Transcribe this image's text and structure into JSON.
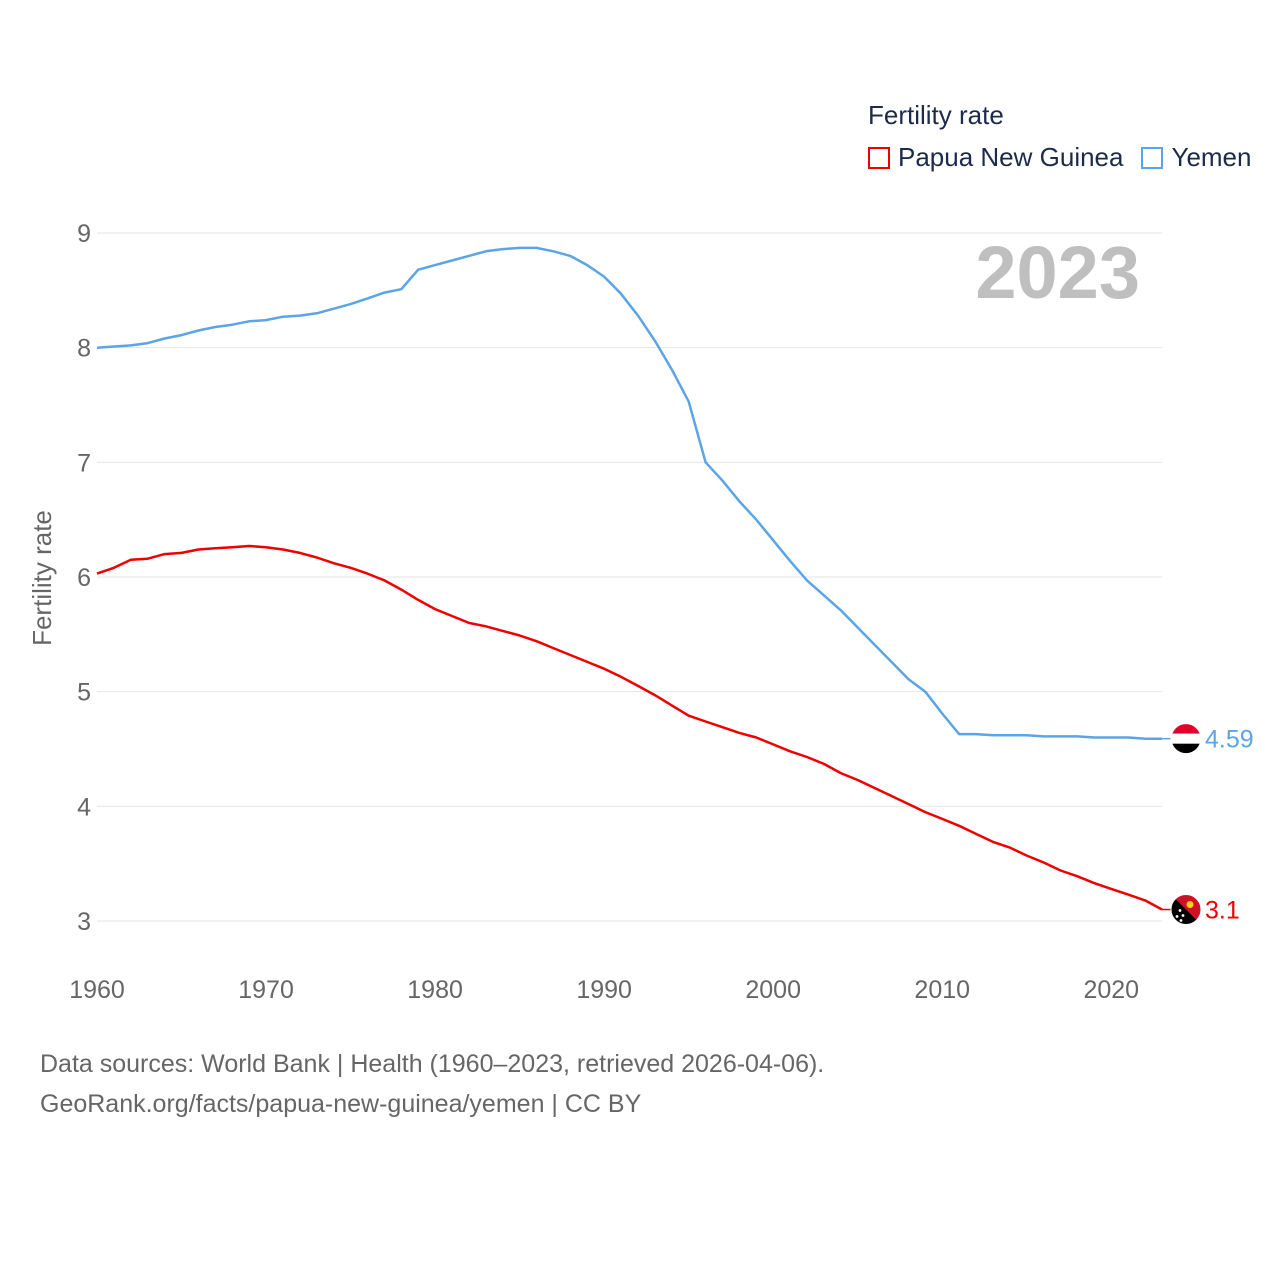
{
  "legend": {
    "title": "Fertility rate",
    "items": [
      {
        "name": "Papua New Guinea",
        "color": "#ee0000"
      },
      {
        "name": "Yemen",
        "color": "#5ba4e6"
      }
    ]
  },
  "footer": {
    "line1": "Data sources: World Bank | Health (1960–2023, retrieved 2026-04-06).",
    "line2": "GeoRank.org/facts/papua-new-guinea/yemen | CC BY"
  },
  "chart_data": {
    "type": "line",
    "year_label": "2023",
    "ylabel": "Fertility rate",
    "xlabel": "",
    "xlim": [
      1960,
      2023
    ],
    "ylim": [
      3,
      9
    ],
    "x_ticks": [
      1960,
      1970,
      1980,
      1990,
      2000,
      2010,
      2020
    ],
    "y_ticks": [
      3,
      4,
      5,
      6,
      7,
      8,
      9
    ],
    "x": [
      1960,
      1961,
      1962,
      1963,
      1964,
      1965,
      1966,
      1967,
      1968,
      1969,
      1970,
      1971,
      1972,
      1973,
      1974,
      1975,
      1976,
      1977,
      1978,
      1979,
      1980,
      1981,
      1982,
      1983,
      1984,
      1985,
      1986,
      1987,
      1988,
      1989,
      1990,
      1991,
      1992,
      1993,
      1994,
      1995,
      1996,
      1997,
      1998,
      1999,
      2000,
      2001,
      2002,
      2003,
      2004,
      2005,
      2006,
      2007,
      2008,
      2009,
      2010,
      2011,
      2012,
      2013,
      2014,
      2015,
      2016,
      2017,
      2018,
      2019,
      2020,
      2021,
      2022,
      2023
    ],
    "series": [
      {
        "name": "Papua New Guinea",
        "color": "#ee0000",
        "end_label": "3.1",
        "flag": "papua-new-guinea-flag",
        "values": [
          6.03,
          6.08,
          6.15,
          6.16,
          6.2,
          6.21,
          6.24,
          6.25,
          6.26,
          6.27,
          6.26,
          6.24,
          6.21,
          6.17,
          6.12,
          6.08,
          6.03,
          5.97,
          5.89,
          5.8,
          5.72,
          5.66,
          5.6,
          5.57,
          5.53,
          5.49,
          5.44,
          5.38,
          5.32,
          5.26,
          5.2,
          5.13,
          5.05,
          4.97,
          4.88,
          4.79,
          4.74,
          4.69,
          4.64,
          4.6,
          4.54,
          4.48,
          4.43,
          4.37,
          4.29,
          4.23,
          4.16,
          4.09,
          4.02,
          3.95,
          3.89,
          3.83,
          3.76,
          3.69,
          3.64,
          3.57,
          3.51,
          3.44,
          3.39,
          3.33,
          3.28,
          3.23,
          3.18,
          3.1
        ]
      },
      {
        "name": "Yemen",
        "color": "#5ba4e6",
        "end_label": "4.59",
        "flag": "yemen-flag",
        "values": [
          8.0,
          8.01,
          8.02,
          8.04,
          8.08,
          8.11,
          8.15,
          8.18,
          8.2,
          8.23,
          8.24,
          8.27,
          8.28,
          8.3,
          8.34,
          8.38,
          8.43,
          8.48,
          8.51,
          8.68,
          8.72,
          8.76,
          8.8,
          8.84,
          8.86,
          8.87,
          8.87,
          8.84,
          8.8,
          8.72,
          8.62,
          8.47,
          8.28,
          8.06,
          7.81,
          7.53,
          7.0,
          6.84,
          6.66,
          6.5,
          6.32,
          6.14,
          5.97,
          5.84,
          5.71,
          5.56,
          5.41,
          5.26,
          5.11,
          5.0,
          4.81,
          4.63,
          4.63,
          4.62,
          4.62,
          4.62,
          4.61,
          4.61,
          4.61,
          4.6,
          4.6,
          4.6,
          4.59,
          4.59
        ]
      }
    ]
  }
}
